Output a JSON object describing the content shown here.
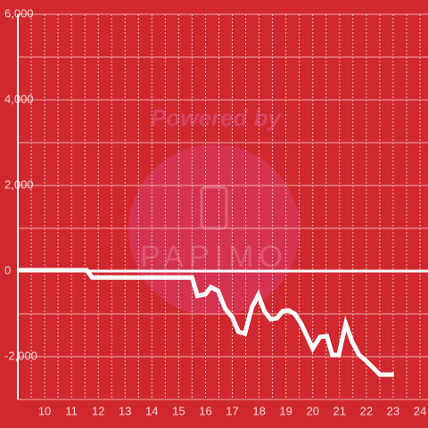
{
  "chart_data": {
    "type": "line",
    "watermark_top": "Powered by",
    "watermark_bottom": "PAPIMO",
    "x": [
      9,
      11.57,
      11.77,
      15.5,
      15.7,
      16,
      16.2,
      16.47,
      16.73,
      17,
      17.23,
      17.47,
      17.73,
      17.97,
      18.2,
      18.43,
      18.67,
      18.87,
      19.1,
      19.33,
      19.57,
      19.8,
      20,
      20.27,
      20.53,
      20.73,
      20.97,
      21.23,
      21.47,
      21.73,
      22,
      22.27,
      22.5,
      23.03
    ],
    "series": [
      {
        "color": "#ffffff",
        "values": [
          20,
          20,
          -150,
          -150,
          -580,
          -540,
          -375,
          -460,
          -875,
          -1080,
          -1420,
          -1460,
          -850,
          -560,
          -940,
          -1125,
          -1100,
          -940,
          -920,
          -1000,
          -1230,
          -1540,
          -1810,
          -1540,
          -1520,
          -1960,
          -1960,
          -1230,
          -1650,
          -1960,
          -2100,
          -2270,
          -2420,
          -2420
        ]
      }
    ],
    "xlim": [
      9,
      24.3
    ],
    "xticks": [
      10,
      11,
      12,
      13,
      14,
      15,
      16,
      17,
      18,
      19,
      20,
      21,
      22,
      23,
      24
    ],
    "xgrid_minor": [
      9.5,
      10.5,
      11.5,
      12.5,
      13.5,
      14.5,
      15.5,
      16.5,
      17.5,
      18.5,
      19.5,
      20.5,
      21.5,
      22.5,
      23.5
    ],
    "ylim": [
      -3000,
      6000
    ],
    "yticks": [
      {
        "value": 6000,
        "label": "6,000"
      },
      {
        "value": 4000,
        "label": "4,000"
      },
      {
        "value": 2000,
        "label": "2,000"
      },
      0,
      {
        "value": -2000,
        "label": "-2,000"
      }
    ],
    "ygrid_minor": [
      5000,
      3000,
      1000,
      -1000,
      -3000
    ],
    "grid": true
  }
}
